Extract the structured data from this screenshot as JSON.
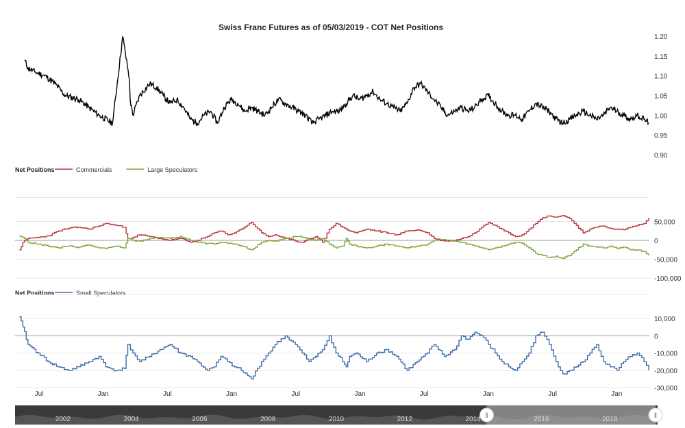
{
  "title": "Swiss Franc Futures as of 05/03/2019 - COT Net Positions",
  "colors": {
    "price": "#000000",
    "commercials": "#b8343c",
    "large_speculators": "#7ea83a",
    "small_speculators": "#3d6ba8",
    "grid": "#e6e6e6",
    "zero_line": "#999999",
    "navigator_bg": "#3a3a3a",
    "navigator_selected": "#bfbfbf",
    "handle": "#ffffff"
  },
  "chart_data": [
    {
      "type": "line",
      "panel": "price",
      "title": "Swiss Franc Futures as of 05/03/2019 - COT Net Positions",
      "y_ticks": [
        "1.20",
        "1.15",
        "1.10",
        "1.05",
        "1.00",
        "0.95",
        "0.90"
      ],
      "y_tick_values": [
        1.2,
        1.15,
        1.1,
        1.05,
        1.0,
        0.95,
        0.9
      ],
      "ylim": [
        0.9,
        1.2
      ],
      "series": [
        {
          "name": "",
          "color_key": "price",
          "x": [
            2000.9,
            2001.0,
            2001.2,
            2001.5,
            2001.8,
            2002.1,
            2002.5,
            2002.8,
            2003.1,
            2003.5,
            2003.8,
            2004.0,
            2004.02,
            2004.1,
            2004.3,
            2004.6,
            2004.8,
            2005.0,
            2005.2,
            2005.4,
            2005.6,
            2005.8,
            2006.0,
            2006.2,
            2006.4,
            2006.6,
            2006.8,
            2007.0,
            2007.2,
            2007.4,
            2007.6,
            2007.8,
            2008.0,
            2008.2,
            2008.4,
            2008.6,
            2008.8,
            2009.0,
            2009.2,
            2009.4,
            2009.6,
            2009.8,
            2010.0,
            2010.2,
            2010.4,
            2010.6,
            2010.8,
            2011.0,
            2011.2,
            2011.4,
            2011.6,
            2011.8,
            2012.0,
            2012.2,
            2012.4,
            2012.6,
            2012.8,
            2013.0,
            2013.2,
            2013.4,
            2013.6,
            2013.8,
            2014.0,
            2014.2,
            2014.4,
            2014.6,
            2014.8,
            2015.0,
            2015.2,
            2015.4,
            2015.6,
            2015.8,
            2016.0,
            2016.2,
            2016.4,
            2016.6,
            2016.8,
            2017.0,
            2017.2,
            2017.4,
            2017.6,
            2017.8,
            2018.0,
            2018.2,
            2018.4,
            2018.6,
            2018.8,
            2019.0,
            2019.2,
            2019.34
          ],
          "y": [
            1.14,
            1.12,
            1.11,
            1.1,
            1.08,
            1.05,
            1.04,
            1.02,
            1.0,
            0.98,
            1.2,
            1.09,
            1.04,
            1.0,
            1.05,
            1.08,
            1.07,
            1.05,
            1.03,
            1.04,
            1.02,
            0.99,
            0.98,
            1.0,
            1.01,
            0.98,
            1.02,
            1.04,
            1.03,
            1.01,
            1.02,
            1.01,
            1.0,
            1.02,
            1.04,
            1.03,
            1.02,
            1.01,
            1.0,
            0.98,
            0.99,
            1.0,
            1.01,
            1.01,
            1.03,
            1.05,
            1.04,
            1.05,
            1.06,
            1.04,
            1.03,
            1.02,
            1.01,
            1.03,
            1.07,
            1.08,
            1.06,
            1.04,
            1.02,
            1.0,
            1.01,
            1.02,
            1.01,
            1.02,
            1.04,
            1.05,
            1.03,
            1.01,
            1.0,
            1.0,
            0.99,
            1.01,
            1.03,
            1.02,
            1.01,
            0.99,
            0.98,
            0.99,
            1.0,
            1.01,
            1.0,
            0.99,
            1.0,
            1.02,
            1.01,
            1.0,
            0.99,
            1.0,
            0.99,
            0.98
          ]
        }
      ]
    },
    {
      "type": "line",
      "panel": "large",
      "legend_title": "Net Positions",
      "y_ticks": [
        "50,000",
        "0",
        "-50,000",
        "-100,000"
      ],
      "y_tick_values": [
        50000,
        0,
        -50000,
        -100000
      ],
      "ylim": [
        -100000,
        100000
      ],
      "series": [
        {
          "name": "Commercials",
          "color_key": "commercials",
          "x": [
            2000.75,
            2000.85,
            2001.0,
            2001.3,
            2001.6,
            2001.9,
            2002.2,
            2002.5,
            2002.8,
            2003.1,
            2003.3,
            2003.6,
            2003.85,
            2003.95,
            2004.1,
            2004.3,
            2004.6,
            2004.9,
            2005.2,
            2005.5,
            2005.8,
            2006.0,
            2006.3,
            2006.5,
            2006.7,
            2006.9,
            2007.1,
            2007.3,
            2007.6,
            2007.9,
            2008.1,
            2008.3,
            2008.6,
            2008.9,
            2009.1,
            2009.3,
            2009.5,
            2009.7,
            2009.9,
            2010.1,
            2010.3,
            2010.4,
            2010.5,
            2010.7,
            2011.0,
            2011.3,
            2011.6,
            2011.9,
            2012.2,
            2012.5,
            2012.8,
            2013.0,
            2013.3,
            2013.6,
            2013.8,
            2014.0,
            2014.2,
            2014.4,
            2014.6,
            2014.8,
            2015.0,
            2015.2,
            2015.4,
            2015.6,
            2015.8,
            2016.0,
            2016.2,
            2016.4,
            2016.6,
            2016.8,
            2017.0,
            2017.2,
            2017.4,
            2017.6,
            2017.8,
            2018.0,
            2018.2,
            2018.4,
            2018.6,
            2018.8,
            2019.0,
            2019.2,
            2019.34
          ],
          "y": [
            -25000,
            -5000,
            5000,
            8000,
            12000,
            25000,
            32000,
            35000,
            30000,
            38000,
            45000,
            40000,
            35000,
            5000,
            8000,
            15000,
            10000,
            5000,
            0,
            5000,
            -5000,
            0,
            10000,
            20000,
            25000,
            15000,
            20000,
            30000,
            48000,
            20000,
            10000,
            15000,
            5000,
            -2000,
            -5000,
            5000,
            10000,
            -5000,
            30000,
            45000,
            35000,
            30000,
            25000,
            20000,
            30000,
            25000,
            20000,
            15000,
            25000,
            28000,
            20000,
            5000,
            -2000,
            0,
            5000,
            10000,
            20000,
            35000,
            48000,
            40000,
            30000,
            20000,
            10000,
            15000,
            30000,
            45000,
            60000,
            65000,
            62000,
            66000,
            58000,
            40000,
            20000,
            30000,
            35000,
            38000,
            32000,
            30000,
            28000,
            35000,
            40000,
            45000,
            60000
          ]
        },
        {
          "name": "Large Speculators",
          "color_key": "large_speculators",
          "x": [
            2000.75,
            2000.85,
            2001.0,
            2001.3,
            2001.6,
            2001.9,
            2002.2,
            2002.5,
            2002.8,
            2003.1,
            2003.3,
            2003.6,
            2003.85,
            2003.95,
            2004.1,
            2004.3,
            2004.6,
            2004.9,
            2005.2,
            2005.5,
            2005.8,
            2006.0,
            2006.3,
            2006.5,
            2006.7,
            2006.9,
            2007.1,
            2007.3,
            2007.6,
            2007.9,
            2008.1,
            2008.3,
            2008.6,
            2008.9,
            2009.1,
            2009.3,
            2009.5,
            2009.7,
            2009.9,
            2010.1,
            2010.3,
            2010.4,
            2010.5,
            2010.7,
            2011.0,
            2011.3,
            2011.6,
            2011.9,
            2012.2,
            2012.5,
            2012.8,
            2013.0,
            2013.3,
            2013.6,
            2013.8,
            2014.0,
            2014.2,
            2014.4,
            2014.6,
            2014.8,
            2015.0,
            2015.2,
            2015.4,
            2015.6,
            2015.8,
            2016.0,
            2016.2,
            2016.4,
            2016.6,
            2016.8,
            2017.0,
            2017.2,
            2017.4,
            2017.6,
            2017.8,
            2018.0,
            2018.2,
            2018.4,
            2018.6,
            2018.8,
            2019.0,
            2019.2,
            2019.34
          ],
          "y": [
            12000,
            8000,
            -5000,
            -10000,
            -15000,
            -20000,
            -15000,
            -18000,
            -12000,
            -20000,
            -22000,
            -15000,
            -20000,
            5000,
            0,
            -2000,
            5000,
            8000,
            5000,
            10000,
            0,
            -5000,
            -8000,
            -10000,
            -5000,
            -8000,
            -10000,
            -15000,
            -25000,
            -5000,
            0,
            -2000,
            5000,
            10000,
            8000,
            2000,
            0,
            5000,
            -10000,
            -20000,
            -15000,
            5000,
            -10000,
            -15000,
            -20000,
            -15000,
            -10000,
            -15000,
            -20000,
            -15000,
            -10000,
            0,
            2000,
            -2000,
            -5000,
            -10000,
            -15000,
            -20000,
            -25000,
            -20000,
            -15000,
            -10000,
            -5000,
            -8000,
            -20000,
            -35000,
            -40000,
            -45000,
            -42000,
            -48000,
            -40000,
            -25000,
            -10000,
            -15000,
            -18000,
            -20000,
            -15000,
            -22000,
            -18000,
            -25000,
            -25000,
            -30000,
            -40000
          ]
        }
      ]
    },
    {
      "type": "line",
      "panel": "small",
      "legend_title": "Net Positions",
      "y_ticks": [
        "10,000",
        "0",
        "-10,000",
        "-20,000",
        "-30,000"
      ],
      "y_tick_values": [
        10000,
        0,
        -10000,
        -20000,
        -30000
      ],
      "ylim": [
        -30000,
        10000
      ],
      "x_ticks": [
        "Jul",
        "Jan",
        "Jul",
        "Jan",
        "Jul",
        "Jan",
        "Jul",
        "Jan",
        "Jul",
        "Jan"
      ],
      "x_tick_values": [
        2014.5,
        2015.0,
        2015.5,
        2016.0,
        2016.5,
        2017.0,
        2017.5,
        2018.0,
        2018.5,
        2019.0
      ],
      "series": [
        {
          "name": "Small Speculators",
          "color_key": "small_speculators",
          "x": [
            2000.75,
            2000.85,
            2001.0,
            2001.3,
            2001.6,
            2001.9,
            2002.2,
            2002.5,
            2002.8,
            2003.1,
            2003.3,
            2003.6,
            2003.85,
            2003.95,
            2004.1,
            2004.3,
            2004.6,
            2004.9,
            2005.2,
            2005.5,
            2005.8,
            2006.0,
            2006.3,
            2006.5,
            2006.7,
            2006.9,
            2007.1,
            2007.3,
            2007.6,
            2007.9,
            2008.1,
            2008.3,
            2008.6,
            2008.9,
            2009.1,
            2009.3,
            2009.5,
            2009.7,
            2009.9,
            2010.1,
            2010.3,
            2010.4,
            2010.5,
            2010.7,
            2011.0,
            2011.3,
            2011.6,
            2011.9,
            2012.2,
            2012.5,
            2012.8,
            2013.0,
            2013.3,
            2013.6,
            2013.8,
            2014.0,
            2014.2,
            2014.4,
            2014.6,
            2014.8,
            2015.0,
            2015.2,
            2015.4,
            2015.6,
            2015.8,
            2016.0,
            2016.2,
            2016.4,
            2016.6,
            2016.8,
            2017.0,
            2017.2,
            2017.4,
            2017.6,
            2017.8,
            2018.0,
            2018.2,
            2018.4,
            2018.6,
            2018.8,
            2019.0,
            2019.2,
            2019.34
          ],
          "y": [
            11000,
            5000,
            -5000,
            -10000,
            -15000,
            -18000,
            -20000,
            -18000,
            -15000,
            -12000,
            -18000,
            -20000,
            -19000,
            -5000,
            -10000,
            -15000,
            -12000,
            -8000,
            -5000,
            -10000,
            -12000,
            -15000,
            -20000,
            -18000,
            -12000,
            -15000,
            -18000,
            -20000,
            -25000,
            -15000,
            -10000,
            -5000,
            0,
            -5000,
            -10000,
            -15000,
            -12000,
            -8000,
            0,
            -10000,
            -15000,
            -18000,
            -12000,
            -10000,
            -15000,
            -10000,
            -8000,
            -12000,
            -20000,
            -15000,
            -10000,
            -5000,
            -12000,
            -8000,
            0,
            -2000,
            2000,
            0,
            -5000,
            -10000,
            -15000,
            -18000,
            -20000,
            -15000,
            -10000,
            0,
            2000,
            -5000,
            -15000,
            -22000,
            -20000,
            -18000,
            -15000,
            -10000,
            -5000,
            -15000,
            -18000,
            -20000,
            -15000,
            -12000,
            -10000,
            -15000,
            -20000
          ]
        }
      ]
    }
  ],
  "navigator": {
    "year_labels": [
      "2002",
      "2004",
      "2006",
      "2008",
      "2010",
      "2012",
      "2014",
      "2016",
      "2018"
    ],
    "year_values": [
      2002,
      2004,
      2006,
      2008,
      2010,
      2012,
      2014,
      2016,
      2018
    ],
    "x_range": [
      2000.6,
      2019.4
    ],
    "selection": [
      2014.4,
      2019.34
    ],
    "handle_glyph": "‖"
  }
}
